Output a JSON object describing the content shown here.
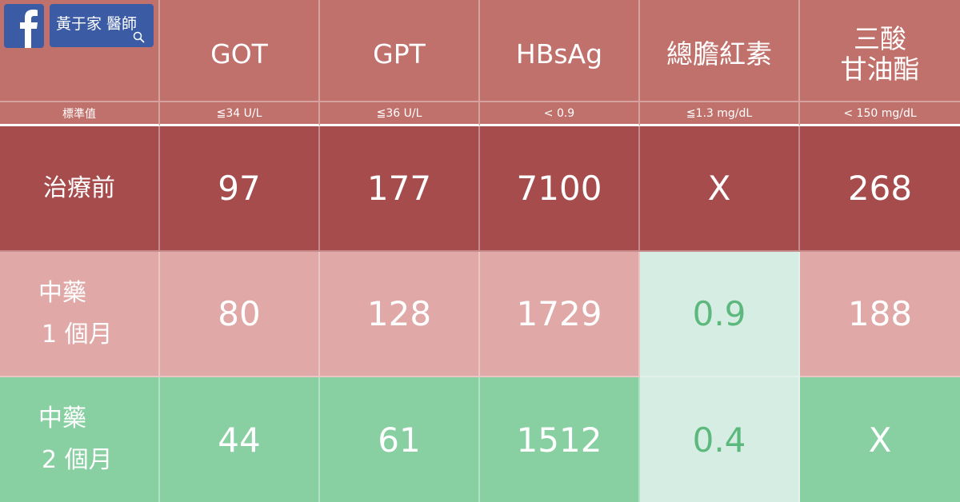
{
  "header": {
    "badge": "黃于家 醫師",
    "columns": [
      [
        "GOT"
      ],
      [
        "GPT"
      ],
      [
        "HBsAg"
      ],
      [
        "總膽紅素"
      ],
      [
        "三酸",
        "甘油酯"
      ]
    ]
  },
  "standard": {
    "label": "標準值",
    "values": [
      "≦34 U/L",
      "≦36 U/L",
      "< 0.9",
      "≦1.3 mg/dL",
      "< 150 mg/dL"
    ]
  },
  "rows": [
    {
      "label": [
        "治療前"
      ],
      "values": [
        97,
        177,
        7100,
        "X",
        268
      ]
    },
    {
      "label": [
        "中藥",
        "1 個月"
      ],
      "values": [
        80,
        128,
        1729,
        0.9,
        188
      ]
    },
    {
      "label": [
        "中藥",
        "2 個月"
      ],
      "values": [
        44,
        61,
        1512,
        0.4,
        "X"
      ]
    }
  ]
}
